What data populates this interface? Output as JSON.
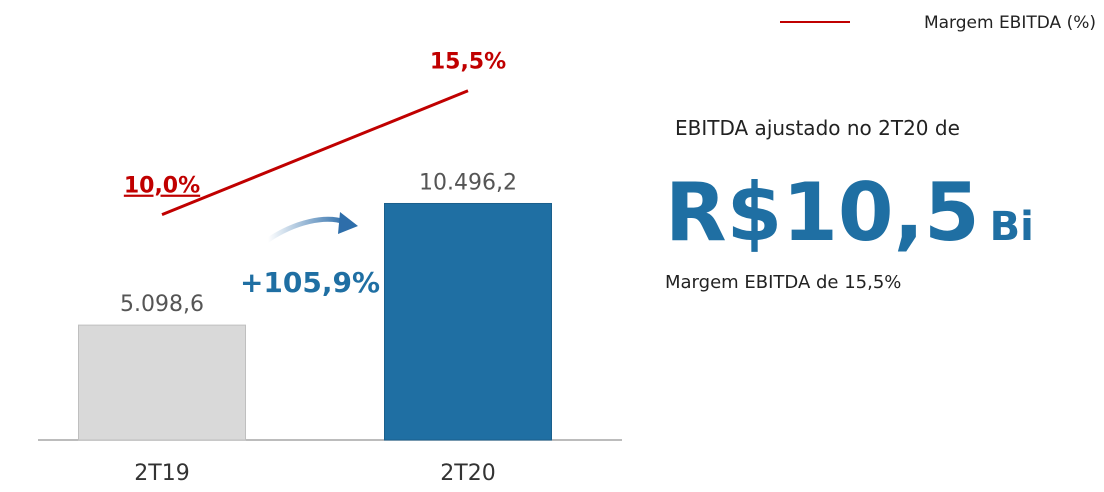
{
  "chart_data": {
    "type": "bar",
    "categories": [
      "2T19",
      "2T20"
    ],
    "values": [
      5098.6,
      10496.2
    ],
    "value_labels": [
      "5.098,6",
      "10.496,2"
    ],
    "colors": [
      "#d9d9d9",
      "#1f6fa3"
    ],
    "ylim": [
      0,
      15000
    ],
    "y2lim": [
      0,
      15
    ],
    "series": [
      {
        "name": "Margem EBITDA (%)",
        "type": "line",
        "axis": "y2",
        "color": "#c00000",
        "values": [
          10.0,
          15.5
        ],
        "value_labels": [
          "10,0%",
          "15,5%"
        ]
      }
    ],
    "legend": "top-right",
    "annotations": [
      "+105,9%",
      "EBITDA ajustado no 2T20 de",
      "R$10,5",
      "Bi",
      "Margem EBITDA de 15,5%"
    ]
  }
}
